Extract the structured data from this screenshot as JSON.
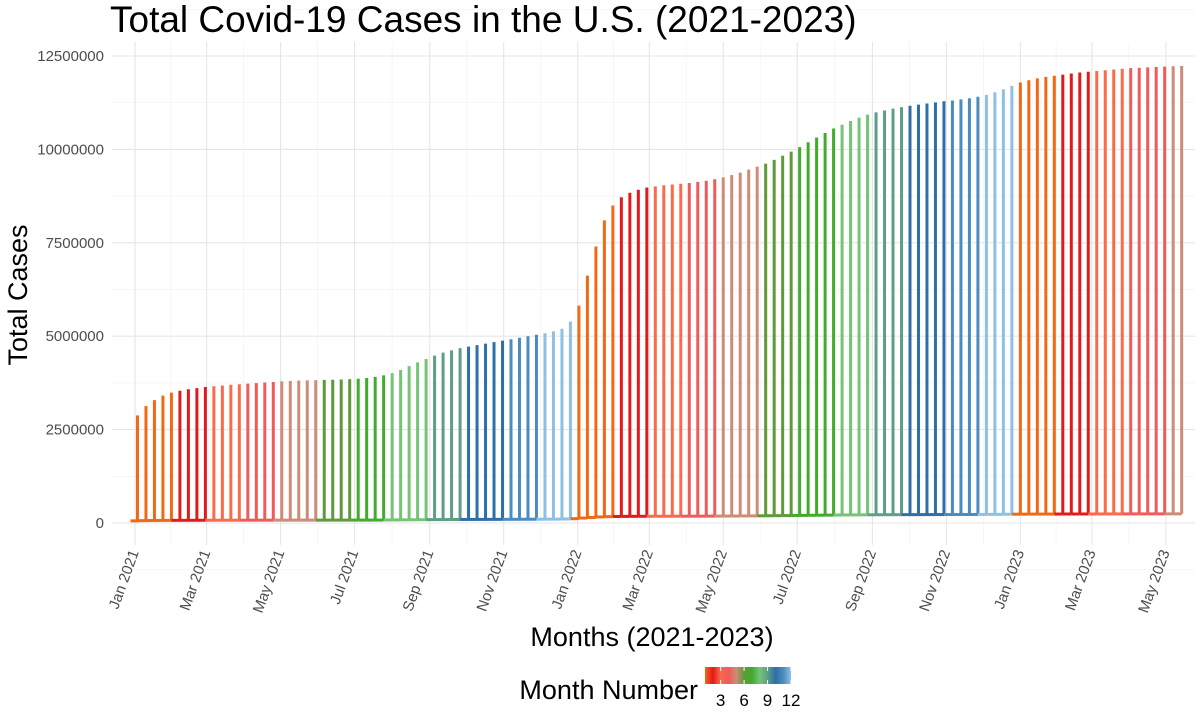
{
  "chart_data": {
    "type": "bar",
    "title": "Total Covid-19 Cases in the U.S. (2021-2023)",
    "xlabel": "Months (2021-2023)",
    "ylabel": "Total Cases",
    "ylim": [
      0,
      12500000
    ],
    "y_ticks": [
      0,
      2500000,
      5000000,
      7500000,
      10000000,
      12500000
    ],
    "y_tick_labels": [
      "0",
      "2500000",
      "5000000",
      "7500000",
      "10000000",
      "12500000"
    ],
    "x_range": [
      "2020-12-13",
      "2023-05-25"
    ],
    "x_ticks": [
      "2021-01-01",
      "2021-03-01",
      "2021-05-01",
      "2021-07-01",
      "2021-09-01",
      "2021-11-01",
      "2022-01-01",
      "2022-03-01",
      "2022-05-01",
      "2022-07-01",
      "2022-09-01",
      "2022-11-01",
      "2023-01-01",
      "2023-03-01",
      "2023-05-01"
    ],
    "x_tick_labels": [
      "Jan 2021",
      "Mar 2021",
      "May 2021",
      "Jul 2021",
      "Sep 2021",
      "Nov 2021",
      "Jan 2022",
      "Mar 2022",
      "May 2022",
      "Jul 2022",
      "Sep 2022",
      "Nov 2022",
      "Jan 2023",
      "Mar 2023",
      "May 2023"
    ],
    "grid": true,
    "legend": {
      "title": "Month Number",
      "placement": "bottom",
      "type": "colorbar",
      "ticks": [
        "3",
        "6",
        "9",
        "12"
      ]
    },
    "month_colors": [
      "#FDB462",
      "#F16913",
      "#E31A1C",
      "#FB6A4A",
      "#EF5A5A",
      "#CE8B77",
      "#5E9A3A",
      "#41AB2C",
      "#74C476",
      "#5E9E88",
      "#2F6FA8",
      "#4A8CC0",
      "#8EC0E4"
    ],
    "points": [
      {
        "x": "2021-01-03",
        "y": 2880000
      },
      {
        "x": "2021-01-10",
        "y": 3130000
      },
      {
        "x": "2021-01-17",
        "y": 3290000
      },
      {
        "x": "2021-01-24",
        "y": 3410000
      },
      {
        "x": "2021-01-31",
        "y": 3490000
      },
      {
        "x": "2021-02-07",
        "y": 3540000
      },
      {
        "x": "2021-02-14",
        "y": 3580000
      },
      {
        "x": "2021-02-21",
        "y": 3610000
      },
      {
        "x": "2021-02-28",
        "y": 3640000
      },
      {
        "x": "2021-03-07",
        "y": 3660000
      },
      {
        "x": "2021-03-14",
        "y": 3680000
      },
      {
        "x": "2021-03-21",
        "y": 3700000
      },
      {
        "x": "2021-03-28",
        "y": 3715000
      },
      {
        "x": "2021-04-04",
        "y": 3730000
      },
      {
        "x": "2021-04-11",
        "y": 3745000
      },
      {
        "x": "2021-04-18",
        "y": 3760000
      },
      {
        "x": "2021-04-25",
        "y": 3775000
      },
      {
        "x": "2021-05-02",
        "y": 3790000
      },
      {
        "x": "2021-05-09",
        "y": 3800000
      },
      {
        "x": "2021-05-16",
        "y": 3810000
      },
      {
        "x": "2021-05-23",
        "y": 3818000
      },
      {
        "x": "2021-05-30",
        "y": 3825000
      },
      {
        "x": "2021-06-06",
        "y": 3830000
      },
      {
        "x": "2021-06-13",
        "y": 3835000
      },
      {
        "x": "2021-06-20",
        "y": 3840000
      },
      {
        "x": "2021-06-27",
        "y": 3850000
      },
      {
        "x": "2021-07-04",
        "y": 3860000
      },
      {
        "x": "2021-07-11",
        "y": 3880000
      },
      {
        "x": "2021-07-18",
        "y": 3910000
      },
      {
        "x": "2021-07-25",
        "y": 3950000
      },
      {
        "x": "2021-08-01",
        "y": 4010000
      },
      {
        "x": "2021-08-08",
        "y": 4100000
      },
      {
        "x": "2021-08-15",
        "y": 4200000
      },
      {
        "x": "2021-08-22",
        "y": 4300000
      },
      {
        "x": "2021-08-29",
        "y": 4390000
      },
      {
        "x": "2021-09-05",
        "y": 4480000
      },
      {
        "x": "2021-09-12",
        "y": 4560000
      },
      {
        "x": "2021-09-19",
        "y": 4620000
      },
      {
        "x": "2021-09-26",
        "y": 4680000
      },
      {
        "x": "2021-10-03",
        "y": 4720000
      },
      {
        "x": "2021-10-10",
        "y": 4760000
      },
      {
        "x": "2021-10-17",
        "y": 4800000
      },
      {
        "x": "2021-10-24",
        "y": 4840000
      },
      {
        "x": "2021-10-31",
        "y": 4880000
      },
      {
        "x": "2021-11-07",
        "y": 4920000
      },
      {
        "x": "2021-11-14",
        "y": 4960000
      },
      {
        "x": "2021-11-21",
        "y": 5000000
      },
      {
        "x": "2021-11-28",
        "y": 5040000
      },
      {
        "x": "2021-12-05",
        "y": 5080000
      },
      {
        "x": "2021-12-12",
        "y": 5130000
      },
      {
        "x": "2021-12-19",
        "y": 5200000
      },
      {
        "x": "2021-12-26",
        "y": 5390000
      },
      {
        "x": "2022-01-02",
        "y": 5820000
      },
      {
        "x": "2022-01-09",
        "y": 6620000
      },
      {
        "x": "2022-01-16",
        "y": 7400000
      },
      {
        "x": "2022-01-23",
        "y": 8100000
      },
      {
        "x": "2022-01-30",
        "y": 8500000
      },
      {
        "x": "2022-02-06",
        "y": 8720000
      },
      {
        "x": "2022-02-13",
        "y": 8840000
      },
      {
        "x": "2022-02-20",
        "y": 8920000
      },
      {
        "x": "2022-02-27",
        "y": 8980000
      },
      {
        "x": "2022-03-06",
        "y": 9010000
      },
      {
        "x": "2022-03-13",
        "y": 9040000
      },
      {
        "x": "2022-03-20",
        "y": 9060000
      },
      {
        "x": "2022-03-27",
        "y": 9080000
      },
      {
        "x": "2022-04-03",
        "y": 9100000
      },
      {
        "x": "2022-04-10",
        "y": 9130000
      },
      {
        "x": "2022-04-17",
        "y": 9160000
      },
      {
        "x": "2022-04-24",
        "y": 9200000
      },
      {
        "x": "2022-05-01",
        "y": 9250000
      },
      {
        "x": "2022-05-08",
        "y": 9310000
      },
      {
        "x": "2022-05-15",
        "y": 9380000
      },
      {
        "x": "2022-05-22",
        "y": 9460000
      },
      {
        "x": "2022-05-29",
        "y": 9540000
      },
      {
        "x": "2022-06-05",
        "y": 9620000
      },
      {
        "x": "2022-06-12",
        "y": 9720000
      },
      {
        "x": "2022-06-19",
        "y": 9830000
      },
      {
        "x": "2022-06-26",
        "y": 9940000
      },
      {
        "x": "2022-07-03",
        "y": 10060000
      },
      {
        "x": "2022-07-10",
        "y": 10190000
      },
      {
        "x": "2022-07-17",
        "y": 10320000
      },
      {
        "x": "2022-07-24",
        "y": 10440000
      },
      {
        "x": "2022-07-31",
        "y": 10560000
      },
      {
        "x": "2022-08-07",
        "y": 10660000
      },
      {
        "x": "2022-08-14",
        "y": 10760000
      },
      {
        "x": "2022-08-21",
        "y": 10850000
      },
      {
        "x": "2022-08-28",
        "y": 10930000
      },
      {
        "x": "2022-09-04",
        "y": 10990000
      },
      {
        "x": "2022-09-11",
        "y": 11040000
      },
      {
        "x": "2022-09-18",
        "y": 11090000
      },
      {
        "x": "2022-09-25",
        "y": 11130000
      },
      {
        "x": "2022-10-02",
        "y": 11170000
      },
      {
        "x": "2022-10-09",
        "y": 11200000
      },
      {
        "x": "2022-10-16",
        "y": 11230000
      },
      {
        "x": "2022-10-23",
        "y": 11260000
      },
      {
        "x": "2022-10-30",
        "y": 11290000
      },
      {
        "x": "2022-11-06",
        "y": 11310000
      },
      {
        "x": "2022-11-13",
        "y": 11340000
      },
      {
        "x": "2022-11-20",
        "y": 11370000
      },
      {
        "x": "2022-11-27",
        "y": 11410000
      },
      {
        "x": "2022-12-04",
        "y": 11460000
      },
      {
        "x": "2022-12-11",
        "y": 11530000
      },
      {
        "x": "2022-12-18",
        "y": 11610000
      },
      {
        "x": "2022-12-25",
        "y": 11700000
      },
      {
        "x": "2023-01-01",
        "y": 11790000
      },
      {
        "x": "2023-01-08",
        "y": 11850000
      },
      {
        "x": "2023-01-15",
        "y": 11900000
      },
      {
        "x": "2023-01-22",
        "y": 11940000
      },
      {
        "x": "2023-01-29",
        "y": 11970000
      },
      {
        "x": "2023-02-05",
        "y": 12000000
      },
      {
        "x": "2023-02-12",
        "y": 12030000
      },
      {
        "x": "2023-02-19",
        "y": 12060000
      },
      {
        "x": "2023-02-26",
        "y": 12080000
      },
      {
        "x": "2023-03-05",
        "y": 12100000
      },
      {
        "x": "2023-03-12",
        "y": 12120000
      },
      {
        "x": "2023-03-19",
        "y": 12140000
      },
      {
        "x": "2023-03-26",
        "y": 12160000
      },
      {
        "x": "2023-04-02",
        "y": 12175000
      },
      {
        "x": "2023-04-09",
        "y": 12185000
      },
      {
        "x": "2023-04-16",
        "y": 12195000
      },
      {
        "x": "2023-04-23",
        "y": 12205000
      },
      {
        "x": "2023-04-30",
        "y": 12215000
      },
      {
        "x": "2023-05-07",
        "y": 12225000
      },
      {
        "x": "2023-05-14",
        "y": 12232000
      }
    ]
  }
}
